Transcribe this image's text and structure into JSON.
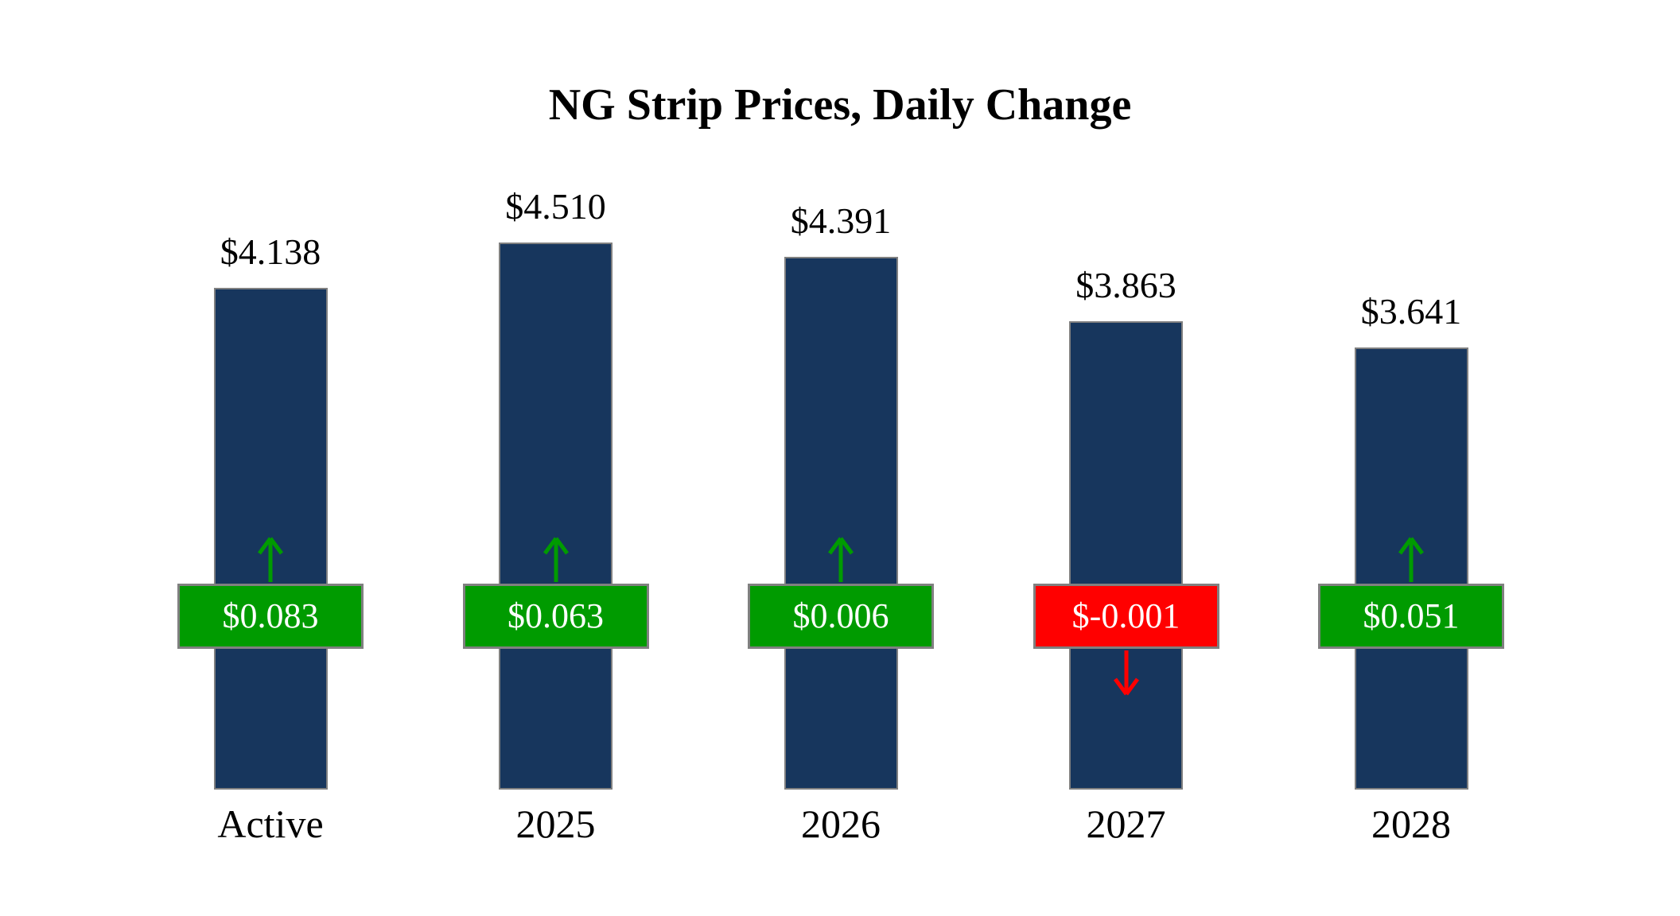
{
  "title": "NG Strip Prices, Daily Change",
  "chart_data": {
    "type": "bar",
    "title": "NG Strip Prices, Daily Change",
    "categories": [
      "Active",
      "2025",
      "2026",
      "2027",
      "2028"
    ],
    "series": [
      {
        "name": "Strip Price",
        "values": [
          4.138,
          4.51,
          4.391,
          3.863,
          3.641
        ]
      },
      {
        "name": "Daily Change",
        "values": [
          0.083,
          0.063,
          0.006,
          -0.001,
          0.051
        ]
      }
    ],
    "price_labels": [
      "$4.138",
      "$4.510",
      "$4.391",
      "$3.863",
      "$3.641"
    ],
    "change_labels": [
      "$0.083",
      "$0.063",
      "$0.006",
      "$-0.001",
      "$0.051"
    ],
    "xlabel": "",
    "ylabel": "",
    "ylim": [
      0,
      4.51
    ],
    "grid": false,
    "legend": false,
    "colors": {
      "bar": "#17365D",
      "positive": "#009B00",
      "negative": "#FF0000",
      "badge_border": "#808080",
      "badge_text": "#FFFFFF",
      "text": "#000000",
      "background": "#FFFFFF"
    }
  }
}
